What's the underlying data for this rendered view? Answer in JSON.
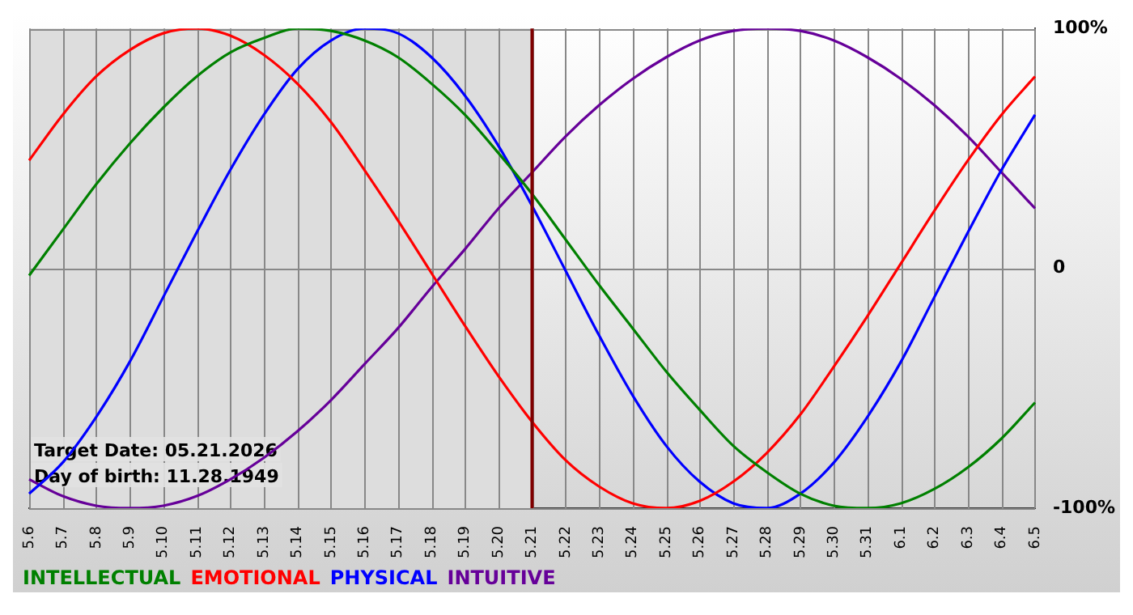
{
  "chart_data": {
    "type": "line",
    "categories": [
      "5.6",
      "5.7",
      "5.8",
      "5.9",
      "5.10",
      "5.11",
      "5.12",
      "5.13",
      "5.14",
      "5.15",
      "5.16",
      "5.17",
      "5.18",
      "5.19",
      "5.20",
      "5.21",
      "5.22",
      "5.23",
      "5.24",
      "5.25",
      "5.26",
      "5.27",
      "5.28",
      "5.29",
      "5.30",
      "5.31",
      "6.1",
      "6.2",
      "6.3",
      "6.4",
      "6.5"
    ],
    "series": [
      {
        "name": "INTELLECTUAL",
        "color": "#008000",
        "values": [
          -3,
          16,
          35,
          52,
          67,
          80,
          90,
          96,
          100,
          99,
          95,
          88,
          77,
          64,
          48,
          31,
          12,
          -7,
          -25,
          -43,
          -59,
          -74,
          -85,
          -94,
          -99,
          -100,
          -98,
          -92,
          -83,
          -71,
          -56
        ]
      },
      {
        "name": "EMOTIONAL",
        "color": "#ff0000",
        "values": [
          45,
          64,
          80,
          91,
          98,
          100,
          97,
          89,
          77,
          61,
          41,
          20,
          -2,
          -24,
          -45,
          -64,
          -80,
          -91,
          -98,
          -100,
          -97,
          -89,
          -77,
          -61,
          -41,
          -20,
          2,
          24,
          45,
          64,
          80
        ]
      },
      {
        "name": "PHYSICAL",
        "color": "#0000ff",
        "values": [
          -94,
          -81,
          -62,
          -39,
          -12,
          15,
          41,
          64,
          83,
          95,
          100,
          98,
          88,
          72,
          51,
          26,
          -1,
          -28,
          -53,
          -74,
          -89,
          -98,
          -100,
          -94,
          -81,
          -62,
          -39,
          -12,
          15,
          41,
          64
        ]
      },
      {
        "name": "INTUITIVE",
        "color": "#660099",
        "values": [
          -88,
          -95,
          -99,
          -100,
          -99,
          -95,
          -88,
          -79,
          -68,
          -55,
          -40,
          -25,
          -8,
          8,
          25,
          40,
          55,
          68,
          79,
          88,
          95,
          99,
          100,
          99,
          95,
          88,
          79,
          68,
          55,
          40,
          25
        ]
      }
    ],
    "ylim": [
      -100,
      100
    ],
    "yticks": [
      {
        "value": 100,
        "label": "100%"
      },
      0,
      {
        "value": -100,
        "label": "-100%"
      }
    ],
    "grid": true,
    "legend": "bottom left",
    "marker": "none",
    "line_style": "solid",
    "ref_lines": [
      {
        "axis": "x",
        "value": "5.21",
        "color": "#800000"
      }
    ],
    "bands": [
      {
        "axis": "x",
        "from": "5.6",
        "to": "5.21",
        "color": "#dddddd"
      }
    ],
    "annotations": [
      "Target Date: 05.21.2026",
      "Day of birth: 11.28.1949"
    ]
  }
}
